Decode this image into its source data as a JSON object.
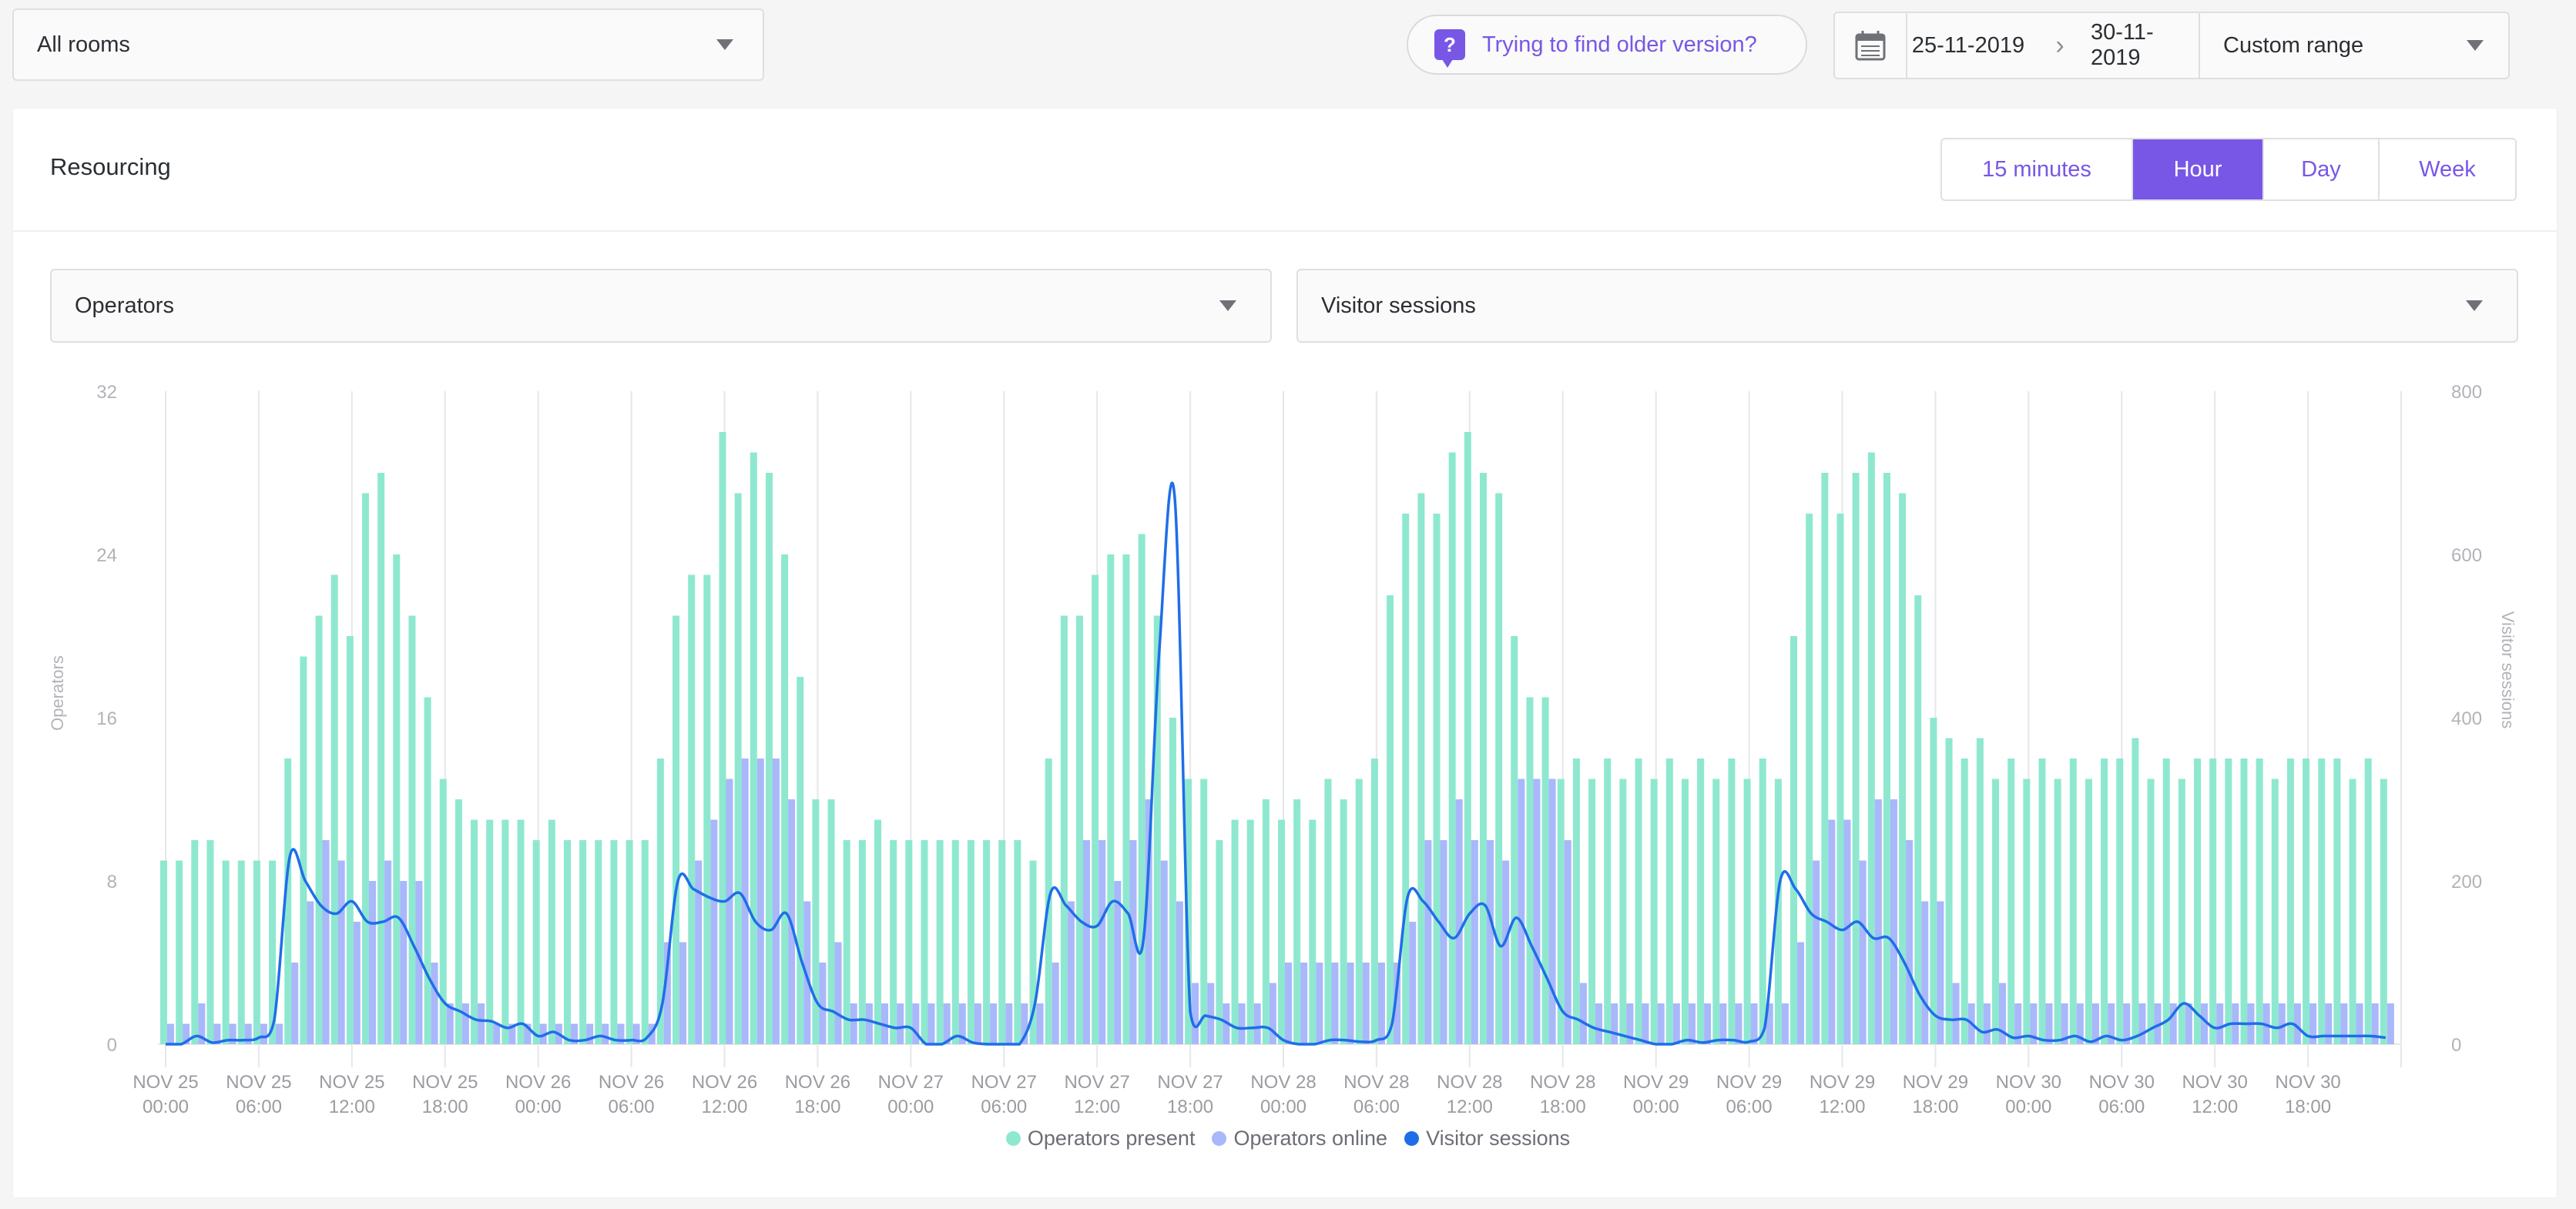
{
  "toolbar": {
    "room_select": "All rooms",
    "help_text": "Trying to find older version?",
    "date_from": "25-11-2019",
    "date_to": "30-11-2019",
    "range_select": "Custom range"
  },
  "card": {
    "title": "Resourcing",
    "granularity": [
      "15 minutes",
      "Hour",
      "Day",
      "Week"
    ],
    "active_granularity": "Hour",
    "left_metric": "Operators",
    "right_metric": "Visitor sessions"
  },
  "colors": {
    "accent": "#7857e6",
    "present": "#8ee8cf",
    "online": "#a9b7fb",
    "sessions": "#1f6ee8"
  },
  "chart_data": {
    "type": "bar",
    "x_tick_labels": [
      [
        "NOV 25",
        "00:00"
      ],
      [
        "NOV 25",
        "06:00"
      ],
      [
        "NOV 25",
        "12:00"
      ],
      [
        "NOV 25",
        "18:00"
      ],
      [
        "NOV 26",
        "00:00"
      ],
      [
        "NOV 26",
        "06:00"
      ],
      [
        "NOV 26",
        "12:00"
      ],
      [
        "NOV 26",
        "18:00"
      ],
      [
        "NOV 27",
        "00:00"
      ],
      [
        "NOV 27",
        "06:00"
      ],
      [
        "NOV 27",
        "12:00"
      ],
      [
        "NOV 27",
        "18:00"
      ],
      [
        "NOV 28",
        "00:00"
      ],
      [
        "NOV 28",
        "06:00"
      ],
      [
        "NOV 28",
        "12:00"
      ],
      [
        "NOV 28",
        "18:00"
      ],
      [
        "NOV 29",
        "00:00"
      ],
      [
        "NOV 29",
        "06:00"
      ],
      [
        "NOV 29",
        "12:00"
      ],
      [
        "NOV 29",
        "18:00"
      ],
      [
        "NOV 30",
        "00:00"
      ],
      [
        "NOV 30",
        "06:00"
      ],
      [
        "NOV 30",
        "12:00"
      ],
      [
        "NOV 30",
        "18:00"
      ]
    ],
    "hours": 144,
    "y_left": {
      "label": "Operators",
      "ticks": [
        0,
        8,
        16,
        24,
        32
      ],
      "range": [
        0,
        32
      ]
    },
    "y_right": {
      "label": "Visitor sessions",
      "ticks": [
        0,
        200,
        400,
        600,
        800
      ],
      "range": [
        0,
        800
      ]
    },
    "grid": "vertical every 6 hours",
    "legend_position": "bottom-center",
    "series": [
      {
        "name": "Operators present",
        "axis": "left",
        "type": "bar",
        "values": [
          9,
          9,
          10,
          10,
          9,
          9,
          9,
          9,
          14,
          19,
          21,
          23,
          20,
          27,
          28,
          24,
          21,
          17,
          13,
          12,
          11,
          11,
          11,
          11,
          10,
          11,
          10,
          10,
          10,
          10,
          10,
          10,
          14,
          21,
          23,
          23,
          30,
          27,
          29,
          28,
          24,
          18,
          12,
          12,
          10,
          10,
          11,
          10,
          10,
          10,
          10,
          10,
          10,
          10,
          10,
          10,
          9,
          14,
          21,
          21,
          23,
          24,
          24,
          25,
          21,
          16,
          13,
          13,
          10,
          11,
          11,
          12,
          11,
          12,
          11,
          13,
          12,
          13,
          14,
          22,
          26,
          27,
          26,
          29,
          30,
          28,
          27,
          20,
          17,
          17,
          13,
          14,
          13,
          14,
          13,
          14,
          13,
          14,
          13,
          14,
          13,
          14,
          13,
          14,
          13,
          20,
          26,
          28,
          26,
          28,
          29,
          28,
          27,
          22,
          16,
          15,
          14,
          15,
          13,
          14,
          13,
          14,
          13,
          14,
          13,
          14,
          14,
          15,
          13,
          14,
          13,
          14,
          14,
          14,
          14,
          14,
          13,
          14,
          14,
          14,
          14,
          13,
          14,
          13
        ]
      },
      {
        "name": "Operators online",
        "axis": "left",
        "type": "bar",
        "values": [
          1,
          1,
          2,
          1,
          1,
          1,
          1,
          1,
          4,
          7,
          10,
          9,
          6,
          8,
          9,
          8,
          8,
          4,
          2,
          2,
          2,
          1,
          1,
          1,
          1,
          1,
          1,
          1,
          1,
          1,
          1,
          1,
          5,
          5,
          9,
          11,
          13,
          14,
          14,
          14,
          12,
          7,
          4,
          5,
          2,
          2,
          2,
          2,
          2,
          2,
          2,
          2,
          2,
          2,
          2,
          2,
          2,
          4,
          7,
          10,
          10,
          8,
          10,
          12,
          9,
          7,
          3,
          3,
          2,
          2,
          2,
          3,
          4,
          4,
          4,
          4,
          4,
          4,
          4,
          4,
          6,
          10,
          10,
          12,
          10,
          10,
          9,
          13,
          13,
          13,
          10,
          3,
          2,
          2,
          2,
          2,
          2,
          2,
          2,
          2,
          2,
          2,
          2,
          2,
          2,
          5,
          9,
          11,
          11,
          9,
          12,
          12,
          10,
          7,
          7,
          3,
          2,
          2,
          3,
          2,
          2,
          2,
          2,
          2,
          2,
          2,
          2,
          2,
          2,
          2,
          2,
          2,
          2,
          2,
          2,
          2,
          2,
          2,
          2,
          2,
          2,
          2,
          2,
          2
        ]
      },
      {
        "name": "Visitor sessions",
        "axis": "right",
        "type": "line",
        "values": [
          0,
          0,
          10,
          2,
          5,
          5,
          8,
          30,
          230,
          200,
          170,
          160,
          175,
          150,
          150,
          155,
          120,
          80,
          50,
          40,
          30,
          28,
          20,
          25,
          10,
          15,
          5,
          5,
          10,
          5,
          5,
          8,
          50,
          200,
          190,
          180,
          175,
          185,
          150,
          140,
          160,
          100,
          50,
          40,
          30,
          30,
          25,
          20,
          20,
          0,
          0,
          10,
          2,
          0,
          0,
          0,
          50,
          185,
          170,
          150,
          145,
          175,
          160,
          130,
          480,
          670,
          40,
          35,
          30,
          20,
          20,
          20,
          5,
          0,
          0,
          5,
          5,
          3,
          5,
          25,
          180,
          175,
          150,
          130,
          160,
          170,
          120,
          155,
          120,
          80,
          40,
          30,
          20,
          15,
          10,
          5,
          0,
          0,
          5,
          2,
          5,
          5,
          3,
          20,
          200,
          190,
          160,
          150,
          140,
          150,
          130,
          130,
          100,
          60,
          35,
          30,
          30,
          15,
          18,
          8,
          10,
          5,
          5,
          10,
          3,
          10,
          5,
          10,
          20,
          30,
          50,
          35,
          20,
          25,
          25,
          25,
          20,
          25,
          10,
          10,
          10,
          10,
          10,
          8
        ]
      }
    ]
  }
}
